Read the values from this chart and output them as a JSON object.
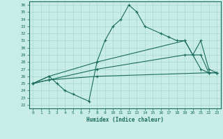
{
  "xlabel": "Humidex (Indice chaleur)",
  "xlim": [
    -0.5,
    23.5
  ],
  "ylim": [
    21.5,
    36.5
  ],
  "xticks": [
    0,
    1,
    2,
    3,
    4,
    5,
    6,
    7,
    8,
    9,
    10,
    11,
    12,
    13,
    14,
    15,
    16,
    17,
    18,
    19,
    20,
    21,
    22,
    23
  ],
  "yticks": [
    22,
    23,
    24,
    25,
    26,
    27,
    28,
    29,
    30,
    31,
    32,
    33,
    34,
    35,
    36
  ],
  "background_color": "#c8ece6",
  "line_color": "#1a6b5e",
  "grid_color": "#aad8ce",
  "lines": [
    {
      "x": [
        0,
        2,
        3,
        4,
        5,
        7,
        8,
        9,
        10,
        11,
        12,
        13,
        14,
        16,
        17,
        18,
        19,
        20,
        21,
        22,
        23
      ],
      "y": [
        25,
        26,
        25,
        24,
        23.5,
        22.5,
        28,
        31,
        33,
        34,
        36,
        35,
        33,
        32,
        31.5,
        31,
        31,
        29,
        27,
        26.5,
        26.5
      ]
    },
    {
      "x": [
        0,
        2,
        8,
        19,
        20,
        21,
        22,
        23
      ],
      "y": [
        25,
        26,
        28,
        31,
        29,
        31,
        27,
        26.5
      ]
    },
    {
      "x": [
        0,
        2,
        8,
        19,
        21,
        22,
        23
      ],
      "y": [
        25,
        25.5,
        27,
        29,
        29,
        26.5,
        26.5
      ]
    },
    {
      "x": [
        0,
        2,
        8,
        22,
        23
      ],
      "y": [
        25,
        25.5,
        26,
        26.5,
        26.5
      ]
    }
  ]
}
